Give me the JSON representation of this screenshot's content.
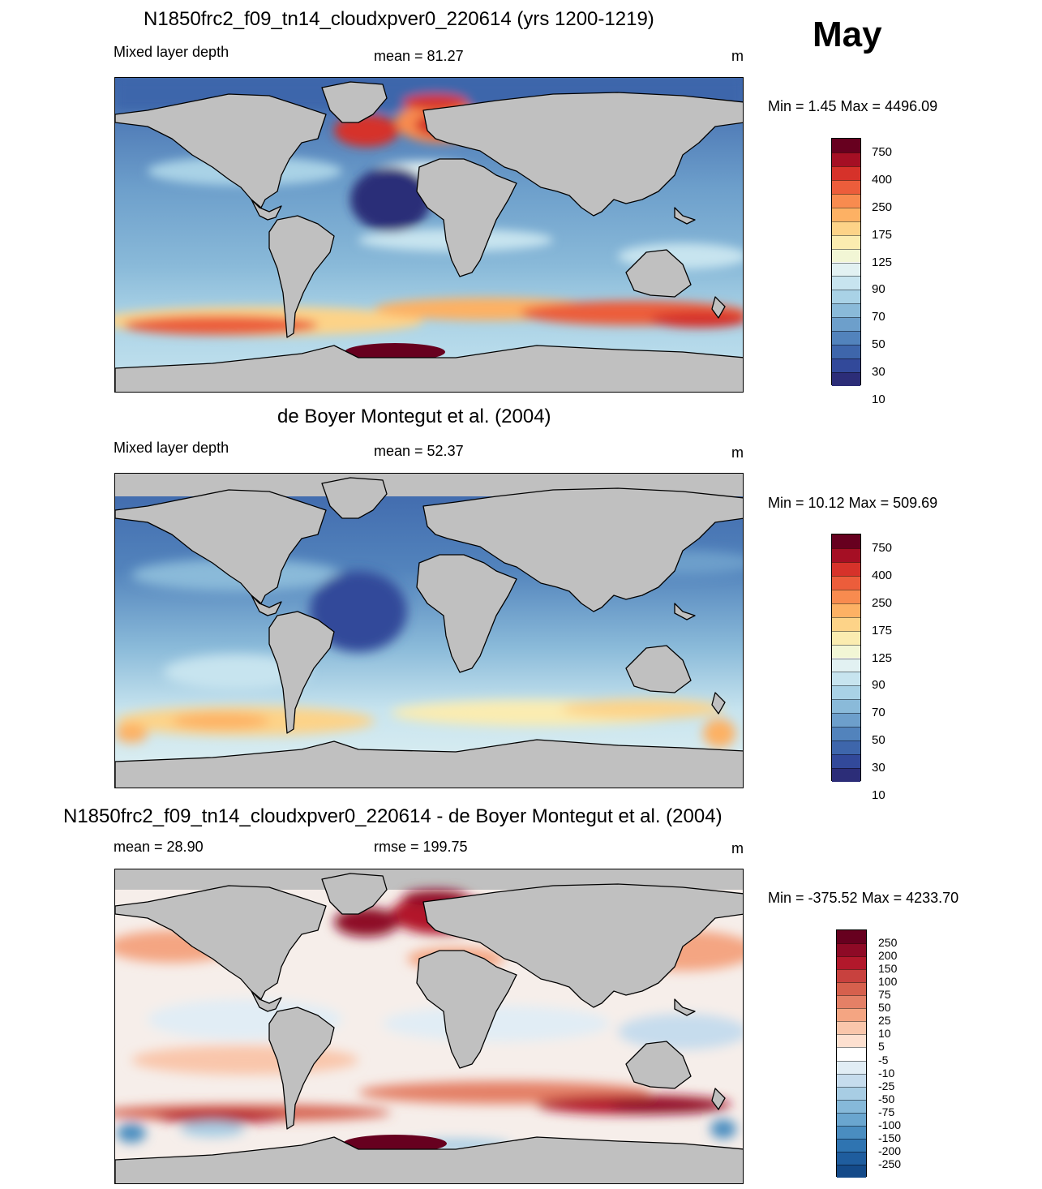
{
  "month": "May",
  "panels": [
    {
      "title": "N1850frc2_f09_tn14_cloudxpver0_220614 (yrs 1200-1219)",
      "left_label": "Mixed layer depth",
      "center_label": "mean =  81.27",
      "units": "m",
      "minmax": "Min =   1.45 Max = 4496.09"
    },
    {
      "title": "de Boyer Montegut et al. (2004)",
      "left_label": "Mixed layer depth",
      "center_label": "mean =  52.37",
      "units": "m",
      "minmax": "Min =  10.12 Max = 509.69"
    },
    {
      "title": "N1850frc2_f09_tn14_cloudxpver0_220614 - de Boyer Montegut et al. (2004)",
      "left_label": "mean =  28.90",
      "center_label": "rmse = 199.75",
      "units": "m",
      "minmax": "Min = -375.52 Max = 4233.70"
    }
  ],
  "colorbar_abs": {
    "labels": [
      "750",
      "400",
      "250",
      "175",
      "125",
      "90",
      "70",
      "50",
      "30",
      "10"
    ],
    "colors": [
      "#67001f",
      "#a50f24",
      "#d6322a",
      "#ec5d3b",
      "#f88b4f",
      "#fdb164",
      "#fdd388",
      "#fbecb0",
      "#f2f6d5",
      "#e2f1f2",
      "#c7e4ef",
      "#a9d2e6",
      "#8abad9",
      "#6d9fcb",
      "#5283bc",
      "#3e66ab",
      "#32499a",
      "#2c2d78"
    ]
  },
  "colorbar_diff": {
    "labels": [
      "250",
      "200",
      "150",
      "100",
      "75",
      "50",
      "25",
      "10",
      "5",
      "-5",
      "-10",
      "-25",
      "-50",
      "-75",
      "-100",
      "-150",
      "-200",
      "-250"
    ],
    "colors": [
      "#67001f",
      "#8e0a26",
      "#b2182b",
      "#c8413e",
      "#d6604d",
      "#e48066",
      "#f4a582",
      "#f9c6ab",
      "#fde0d0",
      "#ffffff",
      "#e1edf5",
      "#c6dced",
      "#a8cde4",
      "#86b9d9",
      "#6aa6cf",
      "#4a8dc0",
      "#2f74b1",
      "#1f5d9e",
      "#144a89"
    ]
  },
  "map_colors": {
    "ocean_low": "#3e66ab",
    "ocean_mid": "#8abad9",
    "ocean_deep_blue": "#2c2d78",
    "warm": "#fdb164",
    "hot": "#d6322a",
    "extreme": "#67001f",
    "diff_base": "#f3ece8",
    "diff_pos": "#f4a582",
    "diff_neg": "#a8cde4",
    "land": "#c0c0c0"
  }
}
